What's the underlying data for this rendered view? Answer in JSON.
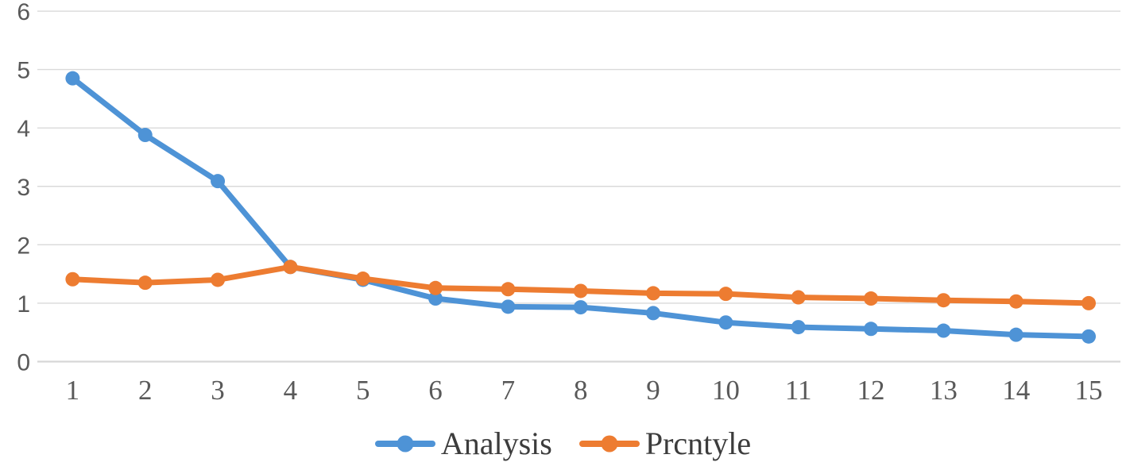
{
  "chart_data": {
    "type": "line",
    "title": "",
    "xlabel": "",
    "ylabel": "",
    "x": [
      1,
      2,
      3,
      4,
      5,
      6,
      7,
      8,
      9,
      10,
      11,
      12,
      13,
      14,
      15
    ],
    "series": [
      {
        "name": "Analysis",
        "color": "#4E93D6",
        "values": [
          4.85,
          3.88,
          3.09,
          1.62,
          1.4,
          1.08,
          0.94,
          0.93,
          0.83,
          0.67,
          0.59,
          0.56,
          0.53,
          0.46,
          0.43
        ]
      },
      {
        "name": "Prcntyle",
        "color": "#ED7C31",
        "values": [
          1.41,
          1.35,
          1.4,
          1.62,
          1.42,
          1.26,
          1.24,
          1.21,
          1.17,
          1.16,
          1.1,
          1.08,
          1.05,
          1.03,
          1.0
        ]
      }
    ],
    "ylim": [
      0,
      6
    ],
    "yticks": [
      0,
      1,
      2,
      3,
      4,
      5,
      6
    ],
    "grid": true,
    "legend_position": "bottom",
    "colors": {
      "gridline": "#D9D9D9",
      "axis_line": "#D6D6D6",
      "tick_label": "#595959",
      "legend_text": "#3C3C3C",
      "background": "#FFFFFF"
    }
  }
}
